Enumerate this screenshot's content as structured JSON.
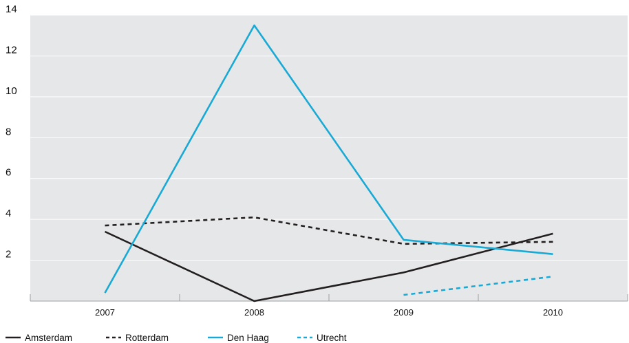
{
  "chart_data": {
    "type": "line",
    "categories": [
      "2007",
      "2008",
      "2009",
      "2010"
    ],
    "ylim": [
      0,
      14
    ],
    "yticks": [
      2,
      4,
      6,
      8,
      10,
      12,
      14
    ],
    "grid": true,
    "legend_position": "bottom-left",
    "title": "",
    "xlabel": "",
    "ylabel": "",
    "series": [
      {
        "name": "Amsterdam",
        "values": [
          3.4,
          0.0,
          1.4,
          3.3
        ],
        "color": "#231f20",
        "dashed": false
      },
      {
        "name": "Rotterdam",
        "values": [
          3.7,
          4.1,
          2.8,
          2.9
        ],
        "color": "#231f20",
        "dashed": true
      },
      {
        "name": "Den Haag",
        "values": [
          0.4,
          13.5,
          3.0,
          2.3
        ],
        "color": "#19a9d5",
        "dashed": false
      },
      {
        "name": "Utrecht",
        "values": [
          null,
          null,
          0.3,
          1.2
        ],
        "color": "#19a9d5",
        "dashed": true
      }
    ],
    "colors": {
      "plot_background": "#e6e7e8",
      "grid": "#ffffff",
      "axis": "#9d9fa2"
    }
  }
}
